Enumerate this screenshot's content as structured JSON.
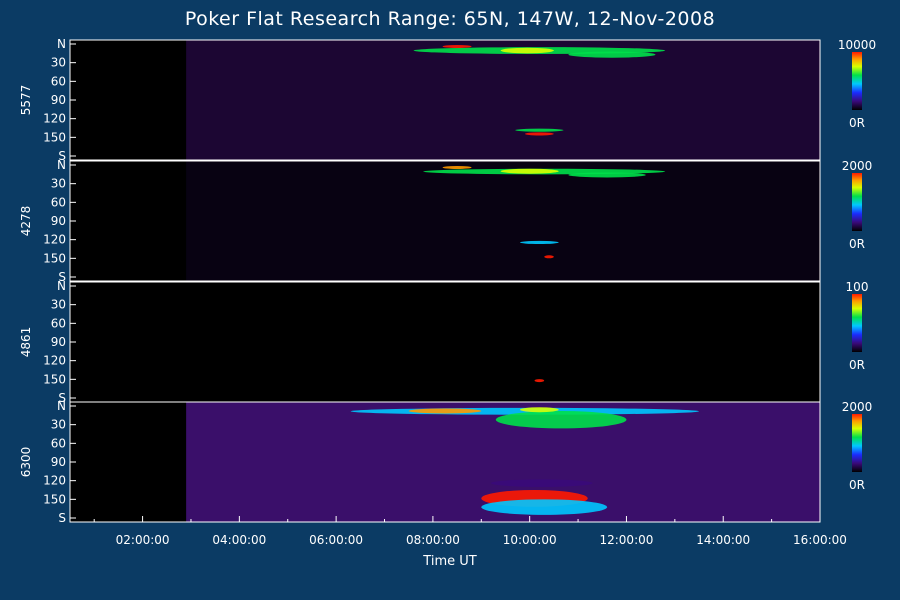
{
  "title": "Poker Flat Research Range: 65N, 147W, 12-Nov-2008",
  "chart_data": {
    "type": "heatmap",
    "title": "Poker Flat Research Range: 65N, 147W, 12-Nov-2008",
    "xlabel": "Time UT",
    "x_ticks": [
      "02:00:00",
      "04:00:00",
      "06:00:00",
      "08:00:00",
      "10:00:00",
      "12:00:00",
      "14:00:00",
      "16:00:00"
    ],
    "x_range_hours": [
      0.5,
      16.0
    ],
    "y_ticks": [
      "N",
      "30",
      "60",
      "90",
      "120",
      "150",
      "S"
    ],
    "y_range": [
      0,
      180
    ],
    "colorbar_min_label": "0R",
    "panels": [
      {
        "channel": "5577",
        "colorbar_max": "10000",
        "background": "#1c0633",
        "data_start_hour": 2.9,
        "features": [
          {
            "hours": [
              7.6,
              12.8
            ],
            "angle": [
              5,
              16
            ],
            "level": 0.55
          },
          {
            "hours": [
              8.2,
              8.8
            ],
            "angle": [
              2,
              6
            ],
            "level": 0.9
          },
          {
            "hours": [
              9.4,
              10.5
            ],
            "angle": [
              6,
              15
            ],
            "level": 0.75
          },
          {
            "hours": [
              10.8,
              12.6
            ],
            "angle": [
              12,
              22
            ],
            "level": 0.6
          },
          {
            "hours": [
              9.7,
              10.7
            ],
            "angle": [
              136,
              141
            ],
            "level": 0.5
          },
          {
            "hours": [
              9.9,
              10.5
            ],
            "angle": [
              142,
              147
            ],
            "level": 0.95
          }
        ]
      },
      {
        "channel": "4278",
        "colorbar_max": "2000",
        "background": "#080212",
        "data_start_hour": 2.9,
        "features": [
          {
            "hours": [
              7.8,
              12.8
            ],
            "angle": [
              6,
              15
            ],
            "level": 0.5
          },
          {
            "hours": [
              8.2,
              8.8
            ],
            "angle": [
              2,
              6
            ],
            "level": 0.85
          },
          {
            "hours": [
              9.4,
              10.6
            ],
            "angle": [
              6,
              14
            ],
            "level": 0.65
          },
          {
            "hours": [
              10.8,
              12.4
            ],
            "angle": [
              12,
              20
            ],
            "level": 0.55
          },
          {
            "hours": [
              9.8,
              10.6
            ],
            "angle": [
              122,
              127
            ],
            "level": 0.4
          },
          {
            "hours": [
              10.3,
              10.5
            ],
            "angle": [
              146,
              149
            ],
            "level": 0.9
          }
        ]
      },
      {
        "channel": "4861",
        "colorbar_max": "100",
        "background": "#000000",
        "data_start_hour": 2.9,
        "features": [
          {
            "hours": [
              10.1,
              10.3
            ],
            "angle": [
              150,
              154
            ],
            "level": 0.95
          }
        ]
      },
      {
        "channel": "6300",
        "colorbar_max": "2000",
        "background": "#3a0f6a",
        "data_start_hour": 2.9,
        "features": [
          {
            "hours": [
              6.3,
              13.5
            ],
            "angle": [
              3,
              14
            ],
            "level": 0.45
          },
          {
            "hours": [
              7.5,
              9.0
            ],
            "angle": [
              4,
              12
            ],
            "level": 0.8
          },
          {
            "hours": [
              9.3,
              12.0
            ],
            "angle": [
              8,
              36
            ],
            "level": 0.6
          },
          {
            "hours": [
              9.8,
              10.6
            ],
            "angle": [
              2,
              10
            ],
            "level": 0.7
          },
          {
            "hours": [
              9.2,
              11.3
            ],
            "angle": [
              118,
              130
            ],
            "level": 0.05
          },
          {
            "hours": [
              9.0,
              11.2
            ],
            "angle": [
              135,
              162
            ],
            "level": 0.98
          },
          {
            "hours": [
              9.0,
              11.6
            ],
            "angle": [
              150,
              175
            ],
            "level": 0.45
          }
        ]
      }
    ]
  }
}
